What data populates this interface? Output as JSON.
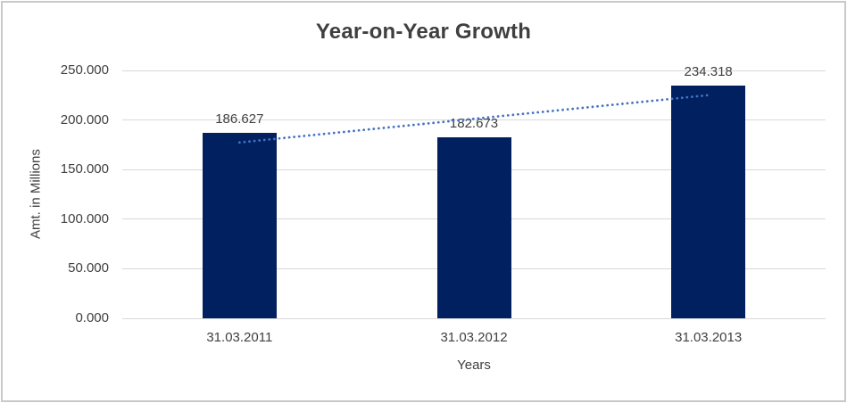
{
  "chart_data": {
    "type": "bar",
    "title": "Year-on-Year Growth",
    "xlabel": "Years",
    "ylabel": "Amt. in Millions",
    "categories": [
      "31.03.2011",
      "31.03.2012",
      "31.03.2013"
    ],
    "values": [
      186.627,
      182.673,
      234.318
    ],
    "data_labels": [
      "186.627",
      "182.673",
      "234.318"
    ],
    "ylim": [
      0,
      250
    ],
    "ytick_step": 50,
    "ytick_labels": [
      "0.000",
      "50.000",
      "100.000",
      "150.000",
      "200.000",
      "250.000"
    ],
    "grid": true,
    "legend": "none",
    "bar_color": "#002060",
    "gridline_color": "#d9d9d9",
    "text_color": "#404040",
    "title_color": "#3f3f3f",
    "border_color": "#c9c9c9",
    "trendline": {
      "type": "linear",
      "style": "dotted",
      "color": "#4472c4"
    }
  }
}
